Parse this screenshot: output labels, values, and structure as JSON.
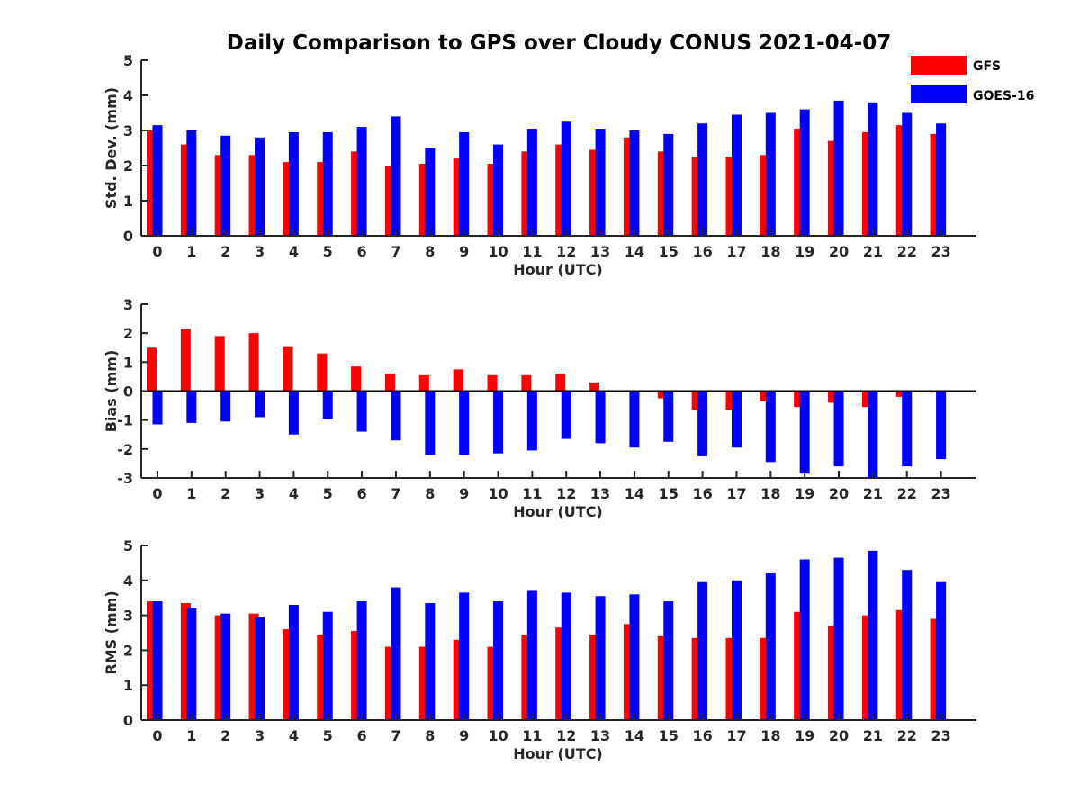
{
  "title": "Daily Comparison to GPS over Cloudy CONUS 2021-04-07",
  "legend": {
    "placement": "top-right",
    "entries": [
      {
        "label": "GFS",
        "color": "#ff0000"
      },
      {
        "label": "GOES-16",
        "color": "#0000ff"
      }
    ]
  },
  "chart_data": [
    {
      "type": "bar",
      "ylabel": "Std. Dev. (mm)",
      "xlabel": "Hour (UTC)",
      "ylim": [
        0,
        5
      ],
      "yticks": [
        0,
        1,
        2,
        3,
        4,
        5
      ],
      "categories": [
        "0",
        "1",
        "2",
        "3",
        "4",
        "5",
        "6",
        "7",
        "8",
        "9",
        "10",
        "11",
        "12",
        "13",
        "14",
        "15",
        "16",
        "17",
        "18",
        "19",
        "20",
        "21",
        "22",
        "23"
      ],
      "series": [
        {
          "name": "GFS",
          "color": "#ff0000",
          "values": [
            3.0,
            2.6,
            2.3,
            2.3,
            2.1,
            2.1,
            2.4,
            2.0,
            2.05,
            2.2,
            2.05,
            2.4,
            2.6,
            2.45,
            2.8,
            2.4,
            2.25,
            2.25,
            2.3,
            3.05,
            2.7,
            2.95,
            3.15,
            2.9
          ]
        },
        {
          "name": "GOES-16",
          "color": "#0000ff",
          "values": [
            3.15,
            3.0,
            2.85,
            2.8,
            2.95,
            2.95,
            3.1,
            3.4,
            2.5,
            2.95,
            2.6,
            3.05,
            3.25,
            3.05,
            3.0,
            2.9,
            3.2,
            3.45,
            3.5,
            3.6,
            3.85,
            3.8,
            3.5,
            3.2
          ]
        }
      ]
    },
    {
      "type": "bar",
      "ylabel": "Bias (mm)",
      "xlabel": "Hour (UTC)",
      "ylim": [
        -3,
        3
      ],
      "yticks": [
        -3,
        -2,
        -1,
        0,
        1,
        2,
        3
      ],
      "categories": [
        "0",
        "1",
        "2",
        "3",
        "4",
        "5",
        "6",
        "7",
        "8",
        "9",
        "10",
        "11",
        "12",
        "13",
        "14",
        "15",
        "16",
        "17",
        "18",
        "19",
        "20",
        "21",
        "22",
        "23"
      ],
      "series": [
        {
          "name": "GFS",
          "color": "#ff0000",
          "values": [
            1.5,
            2.15,
            1.9,
            2.0,
            1.55,
            1.3,
            0.85,
            0.6,
            0.55,
            0.75,
            0.55,
            0.55,
            0.6,
            0.3,
            0.0,
            -0.25,
            -0.65,
            -0.65,
            -0.35,
            -0.55,
            -0.4,
            -0.55,
            -0.2,
            -0.05
          ]
        },
        {
          "name": "GOES-16",
          "color": "#0000ff",
          "values": [
            -1.15,
            -1.1,
            -1.05,
            -0.9,
            -1.5,
            -0.95,
            -1.4,
            -1.7,
            -2.2,
            -2.2,
            -2.15,
            -2.05,
            -1.65,
            -1.8,
            -1.95,
            -1.75,
            -2.25,
            -1.95,
            -2.45,
            -2.85,
            -2.6,
            -3.0,
            -2.6,
            -2.35
          ]
        }
      ]
    },
    {
      "type": "bar",
      "ylabel": "RMS (mm)",
      "xlabel": "Hour (UTC)",
      "ylim": [
        0,
        5
      ],
      "yticks": [
        0,
        1,
        2,
        3,
        4,
        5
      ],
      "categories": [
        "0",
        "1",
        "2",
        "3",
        "4",
        "5",
        "6",
        "7",
        "8",
        "9",
        "10",
        "11",
        "12",
        "13",
        "14",
        "15",
        "16",
        "17",
        "18",
        "19",
        "20",
        "21",
        "22",
        "23"
      ],
      "series": [
        {
          "name": "GFS",
          "color": "#ff0000",
          "values": [
            3.4,
            3.35,
            3.0,
            3.05,
            2.6,
            2.45,
            2.55,
            2.1,
            2.1,
            2.3,
            2.1,
            2.45,
            2.65,
            2.45,
            2.75,
            2.4,
            2.35,
            2.35,
            2.35,
            3.1,
            2.7,
            3.0,
            3.15,
            2.9
          ]
        },
        {
          "name": "GOES-16",
          "color": "#0000ff",
          "values": [
            3.4,
            3.2,
            3.05,
            2.95,
            3.3,
            3.1,
            3.4,
            3.8,
            3.35,
            3.65,
            3.4,
            3.7,
            3.65,
            3.55,
            3.6,
            3.4,
            3.95,
            4.0,
            4.2,
            4.6,
            4.65,
            4.85,
            4.3,
            3.95
          ]
        }
      ]
    }
  ]
}
